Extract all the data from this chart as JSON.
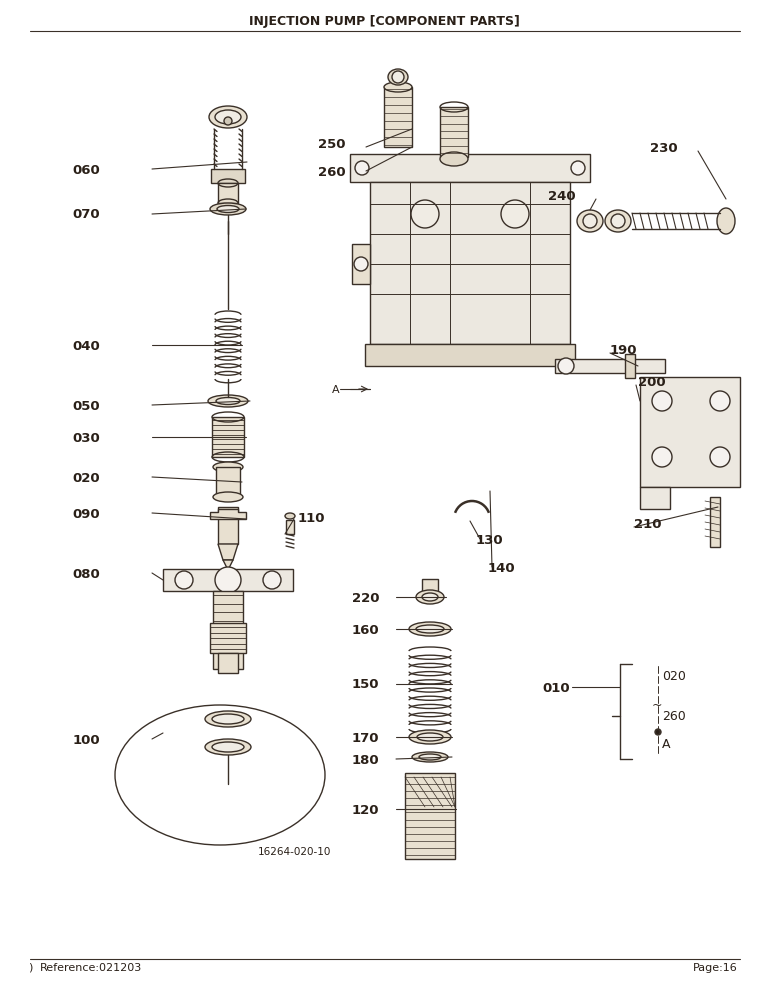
{
  "title": "INJECTION PUMP [COMPONENT PARTS]",
  "footer_left": "Reference:021203",
  "footer_right": "Page:16",
  "bg_color": "#ffffff",
  "line_color": "#3a3028",
  "label_color": "#2a2018",
  "figsize": [
    7.68,
    9.95
  ],
  "dpi": 100,
  "title_fontsize": 9,
  "label_fontsize": 9.5,
  "small_label_fontsize": 7.5,
  "lw": 1.0,
  "part_note": "16264-020-10",
  "tick_mark": ")"
}
